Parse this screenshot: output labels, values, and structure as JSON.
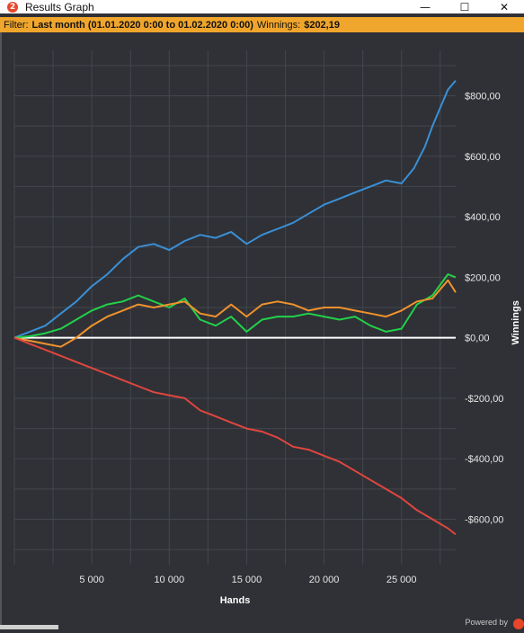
{
  "window": {
    "title": "Results Graph",
    "app_icon_text": "2",
    "minimize_glyph": "—",
    "maximize_glyph": "☐",
    "close_glyph": "✕"
  },
  "filter": {
    "prefix": "Filter:",
    "range": "Last month (01.01.2020 0:00 to 01.02.2020 0:00)",
    "winnings_label": "Winnings:",
    "winnings_value": "$202,19"
  },
  "footer": {
    "powered_by": "Powered by"
  },
  "colors": {
    "background": "#2f3136",
    "filter_bar": "#f0a52c",
    "grid": "#43464d",
    "zero_line": "#ffffff",
    "series_blue": "#3a8fd6",
    "series_green": "#22d14a",
    "series_orange": "#f0922c",
    "series_red": "#e0463f"
  },
  "chart_data": {
    "type": "line",
    "xlabel": "Hands",
    "ylabel": "Winnings",
    "xlim": [
      0,
      28500
    ],
    "ylim": [
      -750,
      950
    ],
    "x_ticks": [
      5000,
      10000,
      15000,
      20000,
      25000
    ],
    "x_tick_labels": [
      "5 000",
      "10 000",
      "15 000",
      "20 000",
      "25 000"
    ],
    "y_ticks": [
      800,
      600,
      400,
      200,
      0,
      -200,
      -400,
      -600
    ],
    "y_tick_labels": [
      "$800,00",
      "$600,00",
      "$400,00",
      "$200,00",
      "$0,00",
      "-$200,00",
      "-$400,00",
      "-$600,00"
    ],
    "grid": true,
    "legend": "none",
    "series": [
      {
        "color": "#3a8fd6",
        "x": [
          0,
          1000,
          2000,
          3000,
          4000,
          5000,
          6000,
          7000,
          8000,
          9000,
          10000,
          11000,
          12000,
          13000,
          14000,
          15000,
          16000,
          17000,
          18000,
          19000,
          20000,
          21000,
          22000,
          23000,
          24000,
          25000,
          25800,
          26500,
          27000,
          27500,
          28000,
          28500
        ],
        "y": [
          0,
          20,
          40,
          80,
          120,
          170,
          210,
          260,
          300,
          310,
          290,
          320,
          340,
          330,
          350,
          310,
          340,
          360,
          380,
          410,
          440,
          460,
          480,
          500,
          520,
          510,
          560,
          630,
          700,
          760,
          820,
          850
        ]
      },
      {
        "color": "#22d14a",
        "x": [
          0,
          1000,
          2000,
          3000,
          4000,
          5000,
          6000,
          7000,
          8000,
          9000,
          10000,
          11000,
          12000,
          13000,
          14000,
          15000,
          16000,
          17000,
          18000,
          19000,
          20000,
          21000,
          22000,
          23000,
          24000,
          25000,
          26000,
          27000,
          28000,
          28500
        ],
        "y": [
          0,
          5,
          15,
          30,
          60,
          90,
          110,
          120,
          140,
          120,
          100,
          130,
          60,
          40,
          70,
          20,
          60,
          70,
          70,
          80,
          70,
          60,
          70,
          40,
          20,
          30,
          110,
          140,
          210,
          200
        ]
      },
      {
        "color": "#f0922c",
        "x": [
          0,
          1000,
          2000,
          3000,
          4000,
          5000,
          6000,
          7000,
          8000,
          9000,
          10000,
          11000,
          12000,
          13000,
          14000,
          15000,
          16000,
          17000,
          18000,
          19000,
          20000,
          21000,
          22000,
          23000,
          24000,
          25000,
          26000,
          27000,
          28000,
          28500
        ],
        "y": [
          0,
          -10,
          -20,
          -30,
          0,
          40,
          70,
          90,
          110,
          100,
          110,
          120,
          80,
          70,
          110,
          70,
          110,
          120,
          110,
          90,
          100,
          100,
          90,
          80,
          70,
          90,
          120,
          130,
          190,
          150
        ]
      },
      {
        "color": "#e0463f",
        "x": [
          0,
          1000,
          2000,
          3000,
          4000,
          5000,
          6000,
          7000,
          8000,
          9000,
          10000,
          11000,
          12000,
          13000,
          14000,
          15000,
          16000,
          17000,
          18000,
          19000,
          20000,
          21000,
          22000,
          23000,
          24000,
          25000,
          26000,
          27000,
          28000,
          28500
        ],
        "y": [
          0,
          -20,
          -40,
          -60,
          -80,
          -100,
          -120,
          -140,
          -160,
          -180,
          -190,
          -200,
          -240,
          -260,
          -280,
          -300,
          -310,
          -330,
          -360,
          -370,
          -390,
          -410,
          -440,
          -470,
          -500,
          -530,
          -570,
          -600,
          -630,
          -650
        ]
      }
    ]
  }
}
